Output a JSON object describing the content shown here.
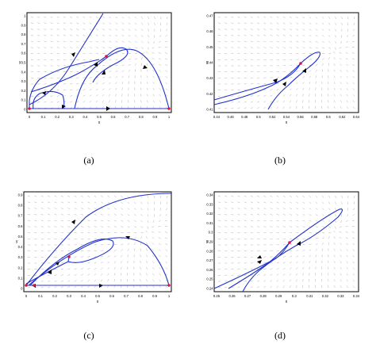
{
  "figure": {
    "captions": [
      "(a)",
      "(b)",
      "(c)",
      "(d)"
    ],
    "colors": {
      "trajectory": "#2233cc",
      "field": "#9a9a9a",
      "axis": "#000000",
      "point": "#dd1144"
    }
  },
  "panels": [
    {
      "id": "a",
      "xlabel": "x",
      "ylabel": "y",
      "xticks": [
        "0",
        "0.1",
        "0.2",
        "0.3",
        "0.4",
        "0.5",
        "0.6",
        "0.7",
        "0.8",
        "0.9",
        "1"
      ],
      "yticks": [
        "0",
        "0.1",
        "0.2",
        "0.3",
        "0.4",
        "0.5",
        "0.6",
        "0.7",
        "0.8",
        "0.9",
        "1"
      ],
      "xlim": [
        -0.02,
        1.02
      ],
      "ylim": [
        -0.02,
        1.0
      ]
    },
    {
      "id": "b",
      "xlabel": "x",
      "ylabel": "y",
      "xticks": [
        "0.44",
        "0.46",
        "0.48",
        "0.5",
        "0.52",
        "0.54",
        "0.56",
        "0.58",
        "0.6",
        "0.62",
        "0.64"
      ],
      "yticks": [
        "0.41",
        "0.42",
        "0.43",
        "0.44",
        "0.45",
        "0.46",
        "0.47"
      ],
      "xlim": [
        0.435,
        0.645
      ],
      "ylim": [
        0.405,
        0.475
      ]
    },
    {
      "id": "c",
      "xlabel": "x",
      "ylabel": "y",
      "xticks": [
        "0",
        "0.1",
        "0.2",
        "0.3",
        "0.4",
        "0.5",
        "0.6",
        "0.7",
        "0.8",
        "0.9",
        "1"
      ],
      "yticks": [
        "0",
        "0.1",
        "0.2",
        "0.3",
        "0.4",
        "0.5",
        "0.6",
        "0.7",
        "0.8",
        "0.9"
      ],
      "xlim": [
        -0.02,
        1.02
      ],
      "ylim": [
        -0.02,
        1.0
      ]
    },
    {
      "id": "d",
      "xlabel": "x",
      "ylabel": "y",
      "xticks": [
        "0.25",
        "0.26",
        "0.27",
        "0.28",
        "0.29",
        "0.3",
        "0.31",
        "0.32",
        "0.33",
        "0.34"
      ],
      "yticks": [
        "0.24",
        "0.25",
        "0.26",
        "0.27",
        "0.28",
        "0.29",
        "0.3",
        "0.31",
        "0.32",
        "0.33",
        "0.34"
      ],
      "xlim": [
        0.245,
        0.345
      ],
      "ylim": [
        0.235,
        0.345
      ]
    }
  ]
}
